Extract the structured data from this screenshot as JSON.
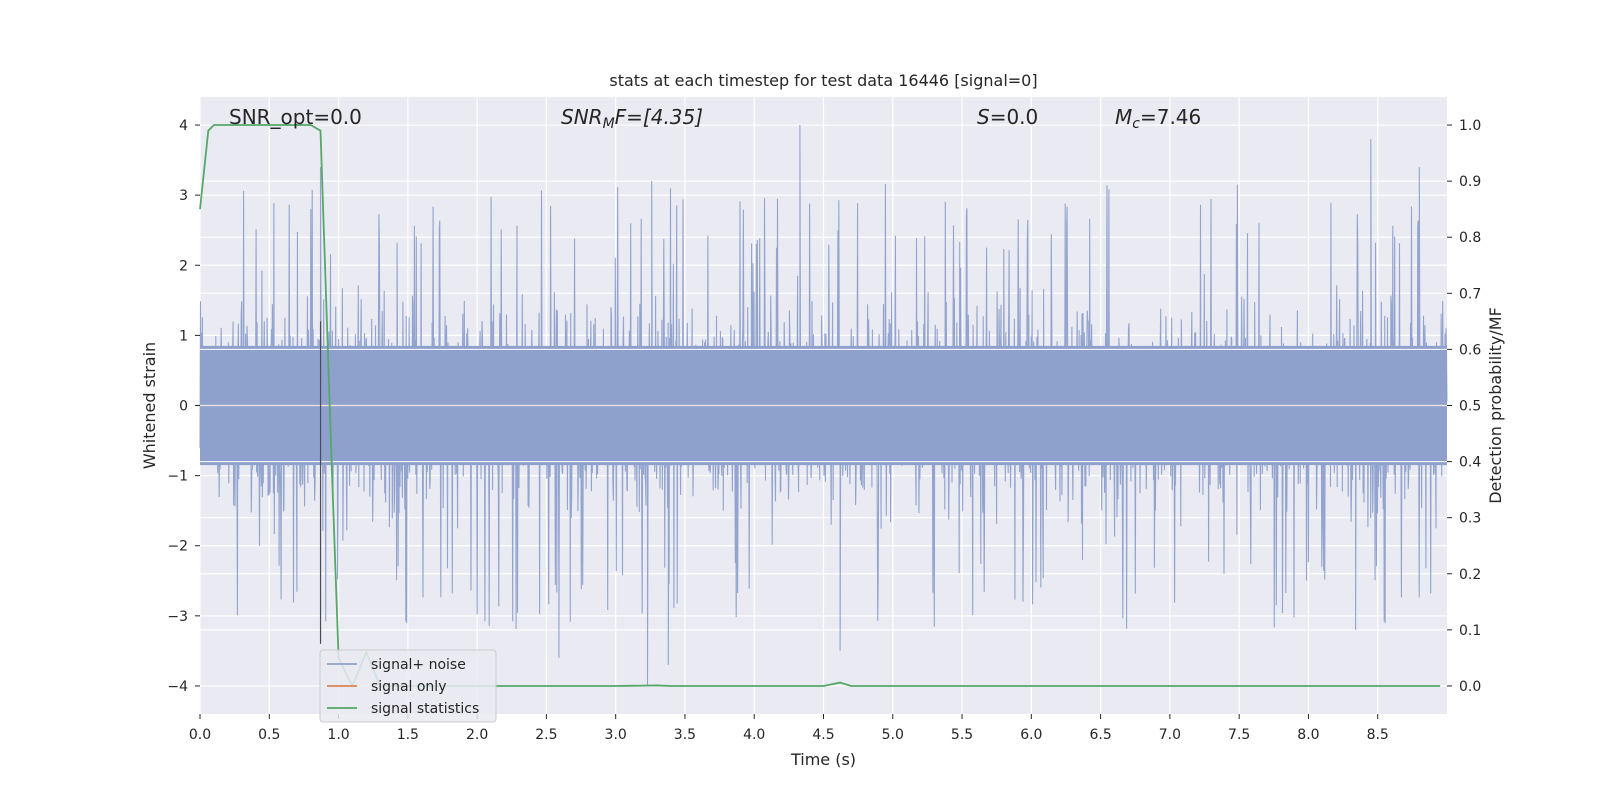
{
  "chart_data": {
    "type": "line",
    "title": "stats at each timestep for test data 16446 [signal=0]",
    "xlabel": "Time (s)",
    "ylabel_left": "Whitened strain",
    "ylabel_right": "Detection probability/MF",
    "xlim": [
      0.0,
      9.0
    ],
    "ylim_left": [
      -4.4,
      4.4
    ],
    "ylim_right": [
      -0.05,
      1.05
    ],
    "x_ticks": [
      "0.0",
      "0.5",
      "1.0",
      "1.5",
      "2.0",
      "2.5",
      "3.0",
      "3.5",
      "4.0",
      "4.5",
      "5.0",
      "5.5",
      "6.0",
      "6.5",
      "7.0",
      "7.5",
      "8.0",
      "8.5"
    ],
    "y_ticks_left": [
      "4",
      "3",
      "2",
      "1",
      "0",
      "−1",
      "−2",
      "−3",
      "−4"
    ],
    "y_ticks_right": [
      "1.0",
      "0.9",
      "0.8",
      "0.7",
      "0.6",
      "0.5",
      "0.4",
      "0.3",
      "0.2",
      "0.1",
      "0.0"
    ],
    "grid": true,
    "annotations": {
      "snr_opt": "SNR_opt=0.0",
      "snr_mf_prefix": "SNR",
      "snr_mf_sub": "M",
      "snr_mf_suffix": "F=[4.35]",
      "s_symbol": "S",
      "s_value": "=0.0",
      "mc_symbol": "M",
      "mc_sub": "c",
      "mc_value": "=7.46"
    },
    "legend": {
      "placement": "lower-left",
      "entries": [
        "signal+ noise",
        "signal only",
        "signal statistics"
      ]
    },
    "series": [
      {
        "name": "signal+ noise",
        "axis": "left",
        "color": "#8ea1cc",
        "kind": "noise",
        "amplitude_core": 1.6,
        "amplitude_peak": 4.0,
        "peaks": [
          [
            0.87,
            3.4
          ],
          [
            2.59,
            -3.6
          ],
          [
            3.23,
            -4.0
          ],
          [
            3.26,
            3.2
          ],
          [
            3.38,
            -3.7
          ],
          [
            4.33,
            4.0
          ],
          [
            4.62,
            -3.5
          ],
          [
            8.45,
            3.8
          ],
          [
            8.8,
            3.4
          ],
          [
            8.34,
            -3.2
          ]
        ]
      },
      {
        "name": "signal only",
        "axis": "left",
        "color": "#dd8452",
        "kind": "flat",
        "value": 0.0
      },
      {
        "name": "signal statistics",
        "axis": "right",
        "color": "#55a868",
        "x": [
          0.0,
          0.06,
          0.1,
          0.2,
          0.4,
          0.6,
          0.8,
          0.87,
          0.95,
          1.0,
          1.1,
          1.2,
          1.3,
          1.4,
          1.6,
          2.0,
          2.5,
          3.0,
          3.3,
          3.4,
          4.0,
          4.5,
          4.62,
          4.7,
          5.0,
          6.0,
          7.0,
          8.0,
          8.95
        ],
        "y": [
          0.85,
          0.99,
          1.0,
          1.0,
          1.0,
          1.0,
          1.0,
          0.99,
          0.4,
          0.05,
          0.0,
          0.06,
          0.0,
          0.0,
          0.0,
          0.0,
          0.0,
          0.0,
          0.001,
          0.0,
          0.0,
          0.0,
          0.006,
          0.0,
          0.0,
          0.0,
          0.0,
          0.0,
          0.0
        ]
      }
    ]
  }
}
